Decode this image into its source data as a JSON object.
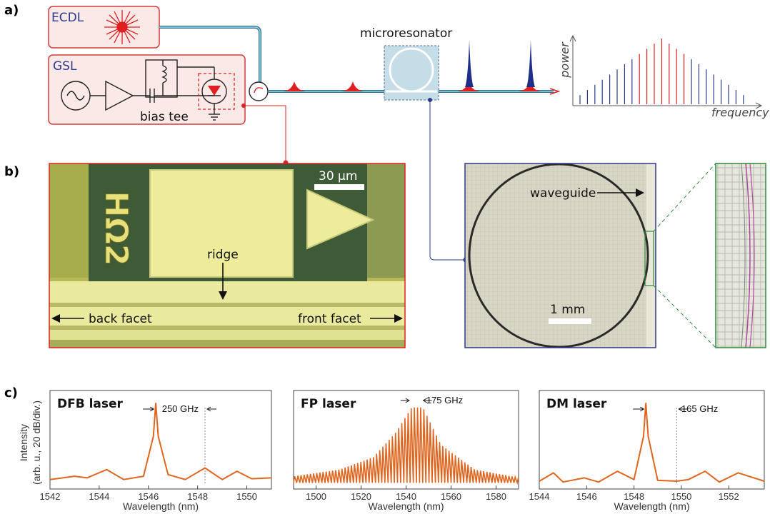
{
  "panel_labels": {
    "a": "a)",
    "b": "b)",
    "c": "c)"
  },
  "setup": {
    "ecdl": "ECDL",
    "gsl": "GSL",
    "bias_tee": "bias tee",
    "microresonator": "microresonator",
    "power": "power",
    "frequency": "frequency"
  },
  "laser_micrograph": {
    "scale": "30 µm",
    "chip_mark": "HΩ2",
    "ridge": "ridge",
    "back_facet": "back facet",
    "front_facet": "front facet"
  },
  "resonator_micrograph": {
    "waveguide": "waveguide",
    "scale": "1 mm"
  },
  "colors": {
    "orange": "#e0661f",
    "red": "#e02020",
    "blue": "#2a3a8c",
    "green": "#2e8b3a"
  },
  "spectra_common": {
    "xlabel": "Wavelength (nm)",
    "ylabel_line1": "Intensity",
    "ylabel_line2": "(arb. u., 20 dB/div.)"
  },
  "chart_data": [
    {
      "type": "line",
      "title": "DFB laser",
      "annotation": "250 GHz",
      "xlim": [
        1542,
        1551
      ],
      "xticks": [
        "1542",
        "1544",
        "1546",
        "1548",
        "1550"
      ],
      "dashed_marker_x": 1548.3,
      "series": [
        {
          "x": [
            1542,
            1543,
            1543.5,
            1544.3,
            1545,
            1545.8,
            1546.2,
            1546.3,
            1546.4,
            1546.8,
            1547.5,
            1548.3,
            1549,
            1549.6,
            1550.2,
            1551
          ],
          "y": [
            0.08,
            0.12,
            0.1,
            0.2,
            0.08,
            0.12,
            0.6,
            1.0,
            0.6,
            0.14,
            0.08,
            0.22,
            0.08,
            0.18,
            0.09,
            0.1
          ]
        }
      ]
    },
    {
      "type": "line",
      "title": "FP laser",
      "annotation": "175 GHz",
      "xlim": [
        1490,
        1590
      ],
      "xticks": [
        "1500",
        "1520",
        "1540",
        "1560",
        "1580"
      ],
      "envelope": {
        "x": [
          1490,
          1510,
          1525,
          1535,
          1542,
          1547,
          1555,
          1570,
          1590
        ],
        "y": [
          0.12,
          0.2,
          0.35,
          0.65,
          0.95,
          0.95,
          0.5,
          0.2,
          0.1
        ]
      }
    },
    {
      "type": "line",
      "title": "DM laser",
      "annotation": "165 GHz",
      "xlim": [
        1544,
        1553.5
      ],
      "xticks": [
        "1544",
        "1546",
        "1548",
        "1550",
        "1552"
      ],
      "dashed_marker_x": 1549.8,
      "series": [
        {
          "x": [
            1544,
            1544.6,
            1545,
            1545.9,
            1546.5,
            1547.3,
            1548,
            1548.4,
            1548.5,
            1548.6,
            1549,
            1549.8,
            1550.3,
            1551,
            1551.6,
            1552.4,
            1553.5
          ],
          "y": [
            0.06,
            0.16,
            0.05,
            0.1,
            0.05,
            0.18,
            0.08,
            0.6,
            1.0,
            0.6,
            0.07,
            0.06,
            0.08,
            0.18,
            0.05,
            0.16,
            0.06
          ]
        }
      ]
    }
  ]
}
